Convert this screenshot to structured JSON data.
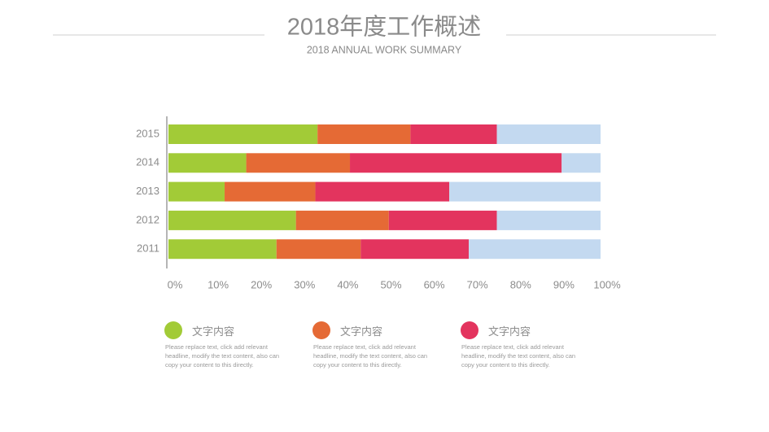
{
  "chart_data": {
    "type": "stacked-bar-horizontal",
    "title": "2018年度工作概述",
    "subtitle": "2018 ANNUAL WORK SUMMARY",
    "categories": [
      "2011",
      "2012",
      "2013",
      "2014",
      "2015"
    ],
    "series": [
      {
        "name": "文字内容",
        "color": "#a2cb37",
        "description": "Please replace text, click add relevant headline, modify the text content, also can copy your content to this directly.",
        "values": [
          25,
          29.5,
          13,
          18,
          34.5
        ]
      },
      {
        "name": "文字内容",
        "color": "#e56a35",
        "description": "Please replace text, click add relevant headline, modify the text content, also can copy your content to this directly.",
        "values": [
          19.5,
          21.5,
          21,
          24,
          21.5
        ]
      },
      {
        "name": "文字内容",
        "color": "#e3345e",
        "description": "Please replace text, click add relevant headline, modify the text content, also can copy your content to this directly.",
        "values": [
          25,
          25,
          31,
          49,
          20
        ]
      },
      {
        "color": "#c3d9f0",
        "values": [
          30.5,
          24,
          35,
          9,
          24
        ]
      }
    ],
    "xlim": [
      0,
      100
    ],
    "xticks": [
      {
        "value": 0,
        "label": "0%"
      },
      {
        "value": 10,
        "label": "10%"
      },
      {
        "value": 20,
        "label": "20%"
      },
      {
        "value": 30,
        "label": "30%"
      },
      {
        "value": 40,
        "label": "40%"
      },
      {
        "value": 50,
        "label": "50%"
      },
      {
        "value": 60,
        "label": "60%"
      },
      {
        "value": 70,
        "label": "70%"
      },
      {
        "value": 80,
        "label": "80%"
      },
      {
        "value": 90,
        "label": "90%"
      },
      {
        "value": 100,
        "label": "100%"
      }
    ]
  }
}
